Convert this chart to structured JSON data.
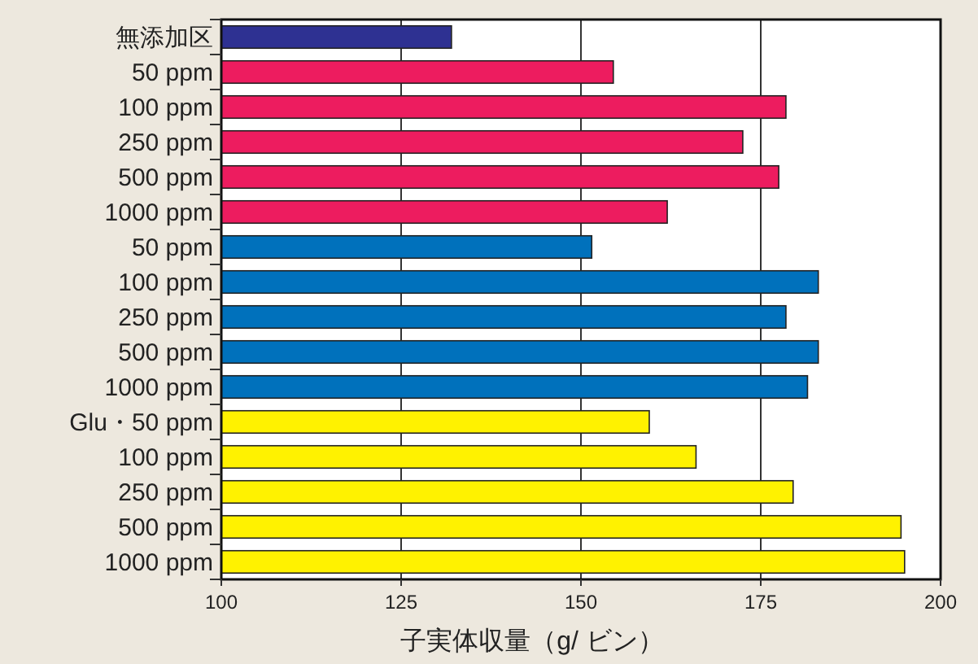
{
  "chart_data": {
    "type": "bar",
    "orientation": "horizontal",
    "categories": [
      "無添加区",
      "50 ppm",
      "100 ppm",
      "250 ppm",
      "500 ppm",
      "1000 ppm",
      "50 ppm",
      "100 ppm",
      "250 ppm",
      "500 ppm",
      "1000 ppm",
      "Glu・50 ppm",
      "100 ppm",
      "250 ppm",
      "500 ppm",
      "1000 ppm"
    ],
    "values": [
      132,
      154.5,
      178.5,
      172.5,
      177.5,
      162,
      151.5,
      183,
      178.5,
      183,
      181.5,
      159.5,
      166,
      179.5,
      194.5,
      195
    ],
    "colors": [
      "#2e3192",
      "#ed1c5f",
      "#ed1c5f",
      "#ed1c5f",
      "#ed1c5f",
      "#ed1c5f",
      "#0071bc",
      "#0071bc",
      "#0071bc",
      "#0071bc",
      "#0071bc",
      "#fff200",
      "#fff200",
      "#fff200",
      "#fff200",
      "#fff200"
    ],
    "xlabel": "子実体収量（g/ ビン）",
    "xlim": [
      100,
      200
    ],
    "xticks": [
      100,
      125,
      150,
      175,
      200
    ],
    "grid": "x"
  }
}
